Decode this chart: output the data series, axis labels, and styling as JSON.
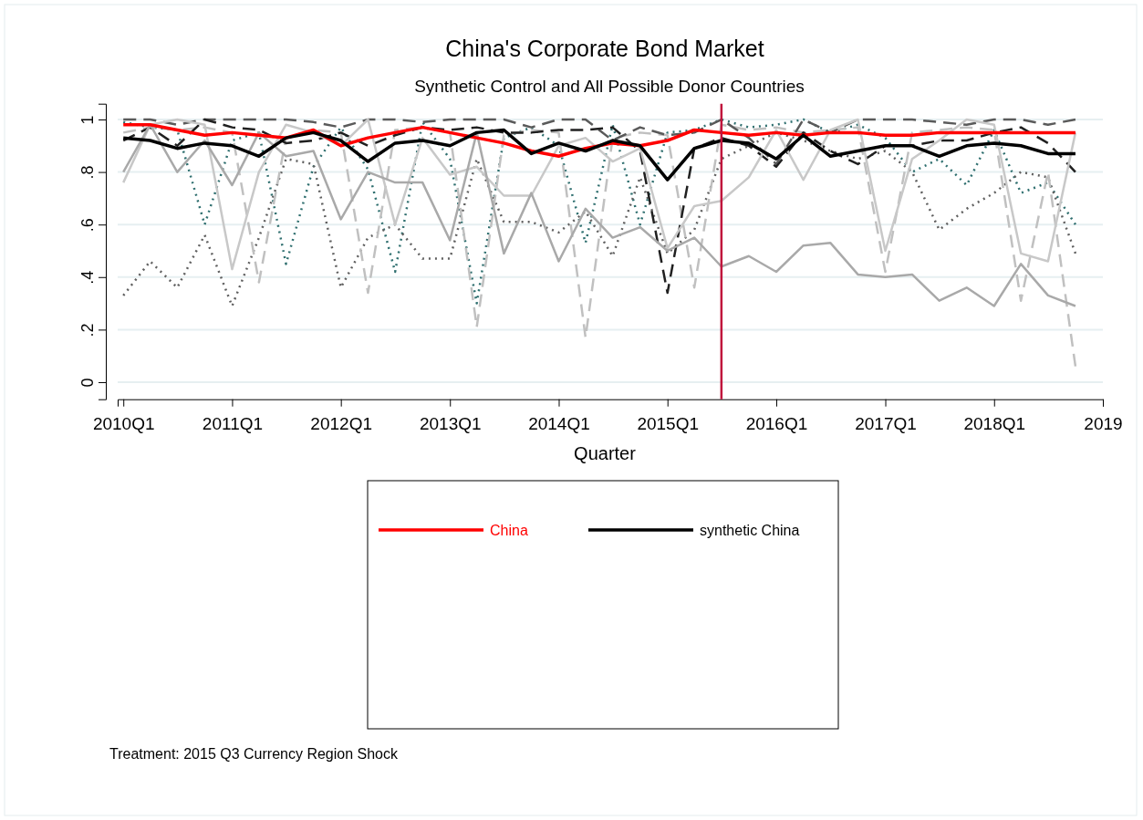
{
  "chart_data": {
    "type": "line",
    "title": "China's Corporate Bond Market",
    "subtitle": "Synthetic Control and All Possible Donor Countries",
    "xlabel": "Quarter",
    "x": [
      "2010-01",
      "2010-04",
      "2010-07",
      "2010-10",
      "2011-01",
      "2011-04",
      "2011-07",
      "2011-10",
      "2012-01",
      "2012-04",
      "2012-07",
      "2012-10",
      "2013-01",
      "2013-04",
      "2013-07",
      "2013-10",
      "2014-01",
      "2014-04",
      "2014-07",
      "2014-10",
      "2015-01",
      "2015-04",
      "2015-07",
      "2015-10",
      "2016-01",
      "2016-04",
      "2016-07",
      "2016-10",
      "2017-01",
      "2017-04",
      "2017-07",
      "2017-10",
      "2018-01",
      "2018-04",
      "2018-07",
      "2018-10"
    ],
    "xlim": [
      "2009-12-13",
      "2019-01"
    ],
    "xticks": [
      {
        "value": "2010-01",
        "label": "2010Q1"
      },
      {
        "value": "2011-01",
        "label": "2011Q1"
      },
      {
        "value": "2012-01",
        "label": "2012Q1"
      },
      {
        "value": "2013-01",
        "label": "2013Q1"
      },
      {
        "value": "2014-01",
        "label": "2014Q1"
      },
      {
        "value": "2015-01",
        "label": "2015Q1"
      },
      {
        "value": "2016-01",
        "label": "2016Q1"
      },
      {
        "value": "2017-01",
        "label": "2017Q1"
      },
      {
        "value": "2018-01",
        "label": "2018Q1"
      },
      {
        "value": "2019-01",
        "label": "2019"
      }
    ],
    "ylim": [
      -0.065,
      1.06
    ],
    "yticks": [
      {
        "value": 0,
        "label": "0"
      },
      {
        "value": 0.2,
        "label": ".2"
      },
      {
        "value": 0.4,
        "label": ".4"
      },
      {
        "value": 0.6,
        "label": ".6"
      },
      {
        "value": 0.8,
        "label": ".8"
      },
      {
        "value": 1,
        "label": "1"
      }
    ],
    "grid": "y",
    "legend": "bottom",
    "series": [
      {
        "color": "#2f6f6f",
        "line_style": "dotted",
        "values": [
          0.99,
          0.97,
          0.96,
          0.6,
          0.92,
          0.95,
          0.45,
          0.82,
          0.97,
          0.81,
          0.42,
          0.99,
          0.85,
          0.3,
          0.93,
          0.97,
          0.9,
          0.53,
          0.98,
          0.6,
          0.95,
          0.96,
          1.0,
          0.97,
          0.98,
          1.0,
          0.95,
          0.98,
          0.93,
          0.8,
          0.85,
          0.75,
          0.96,
          0.72,
          0.76,
          0.6
        ]
      },
      {
        "color": "#606060",
        "line_style": "dotted",
        "values": [
          0.33,
          0.46,
          0.36,
          0.56,
          0.29,
          0.55,
          0.85,
          0.83,
          0.36,
          0.55,
          0.6,
          0.47,
          0.47,
          0.85,
          0.61,
          0.61,
          0.57,
          0.65,
          0.48,
          0.78,
          0.49,
          0.58,
          0.85,
          0.9,
          0.95,
          0.92,
          0.88,
          0.85,
          0.88,
          0.8,
          0.58,
          0.66,
          0.72,
          0.8,
          0.78,
          0.49
        ]
      },
      {
        "color": "#c0c0c0",
        "line_style": "dashed",
        "values": [
          0.95,
          0.97,
          0.96,
          0.97,
          0.95,
          0.38,
          0.93,
          0.96,
          0.95,
          0.34,
          0.96,
          0.97,
          0.95,
          0.21,
          0.94,
          0.96,
          0.95,
          0.17,
          0.93,
          0.95,
          0.94,
          0.36,
          0.98,
          0.96,
          0.97,
          0.95,
          0.96,
          0.97,
          0.42,
          0.95,
          0.96,
          0.97,
          0.96,
          0.31,
          0.8,
          0.06
        ]
      },
      {
        "color": "#5a5a5a",
        "line_style": "dashed",
        "values": [
          1.0,
          1.0,
          0.98,
          1.0,
          1.0,
          1.0,
          1.0,
          0.99,
          0.97,
          1.0,
          1.0,
          0.99,
          1.0,
          1.0,
          1.0,
          0.97,
          1.0,
          1.0,
          0.92,
          0.97,
          0.94,
          0.95,
          1.0,
          0.93,
          0.83,
          1.0,
          0.95,
          1.0,
          1.0,
          1.0,
          0.99,
          0.98,
          1.0,
          1.0,
          0.98,
          1.0
        ]
      },
      {
        "color": "#202020",
        "line_style": "dashed",
        "values": [
          0.92,
          0.97,
          0.9,
          1.0,
          0.97,
          0.96,
          0.91,
          0.92,
          0.95,
          0.9,
          0.94,
          0.97,
          0.96,
          0.97,
          0.95,
          0.95,
          0.96,
          0.96,
          0.97,
          0.88,
          0.34,
          0.89,
          0.93,
          0.9,
          0.82,
          0.95,
          0.88,
          0.83,
          0.9,
          0.9,
          0.92,
          0.92,
          0.95,
          0.97,
          0.91,
          0.8
        ]
      },
      {
        "color": "#c8c8c8",
        "line_style": "solid",
        "values": [
          0.76,
          0.98,
          1.0,
          0.98,
          0.43,
          0.8,
          0.98,
          0.95,
          0.9,
          1.0,
          0.6,
          0.93,
          0.79,
          0.82,
          0.71,
          0.71,
          0.9,
          0.93,
          0.84,
          0.89,
          0.51,
          0.67,
          0.69,
          0.78,
          0.96,
          0.77,
          0.96,
          1.0,
          0.5,
          0.85,
          0.92,
          1.0,
          0.98,
          0.49,
          0.46,
          0.95
        ]
      },
      {
        "color": "#a9a9a9",
        "line_style": "solid",
        "values": [
          0.8,
          0.98,
          0.8,
          0.92,
          0.75,
          0.95,
          0.86,
          0.88,
          0.62,
          0.8,
          0.76,
          0.76,
          0.54,
          0.95,
          0.49,
          0.72,
          0.46,
          0.66,
          0.55,
          0.59,
          0.5,
          0.55,
          0.44,
          0.48,
          0.42,
          0.52,
          0.53,
          0.41,
          0.4,
          0.41,
          0.31,
          0.36,
          0.29,
          0.45,
          0.33,
          0.29
        ]
      },
      {
        "name": "China",
        "color": "#ff0000",
        "line_style": "solid",
        "values": [
          0.98,
          0.98,
          0.96,
          0.94,
          0.95,
          0.94,
          0.93,
          0.96,
          0.9,
          0.93,
          0.95,
          0.97,
          0.95,
          0.93,
          0.91,
          0.88,
          0.86,
          0.89,
          0.91,
          0.9,
          0.92,
          0.96,
          0.95,
          0.94,
          0.95,
          0.94,
          0.95,
          0.95,
          0.94,
          0.94,
          0.95,
          0.95,
          0.95,
          0.95,
          0.95,
          0.95
        ]
      },
      {
        "name": "synthetic China",
        "color": "#000000",
        "line_style": "solid",
        "values": [
          0.93,
          0.92,
          0.89,
          0.91,
          0.9,
          0.86,
          0.93,
          0.95,
          0.92,
          0.84,
          0.91,
          0.92,
          0.9,
          0.95,
          0.96,
          0.87,
          0.91,
          0.88,
          0.92,
          0.9,
          0.77,
          0.89,
          0.92,
          0.91,
          0.85,
          0.94,
          0.86,
          0.88,
          0.9,
          0.9,
          0.86,
          0.9,
          0.91,
          0.9,
          0.87,
          0.87
        ]
      }
    ],
    "ref_lines": [
      {
        "axis": "x",
        "value": "2015-07",
        "color": "#c0143c"
      }
    ],
    "annotations": [
      "Treatment: 2015 Q3 Currency Region Shock"
    ]
  }
}
